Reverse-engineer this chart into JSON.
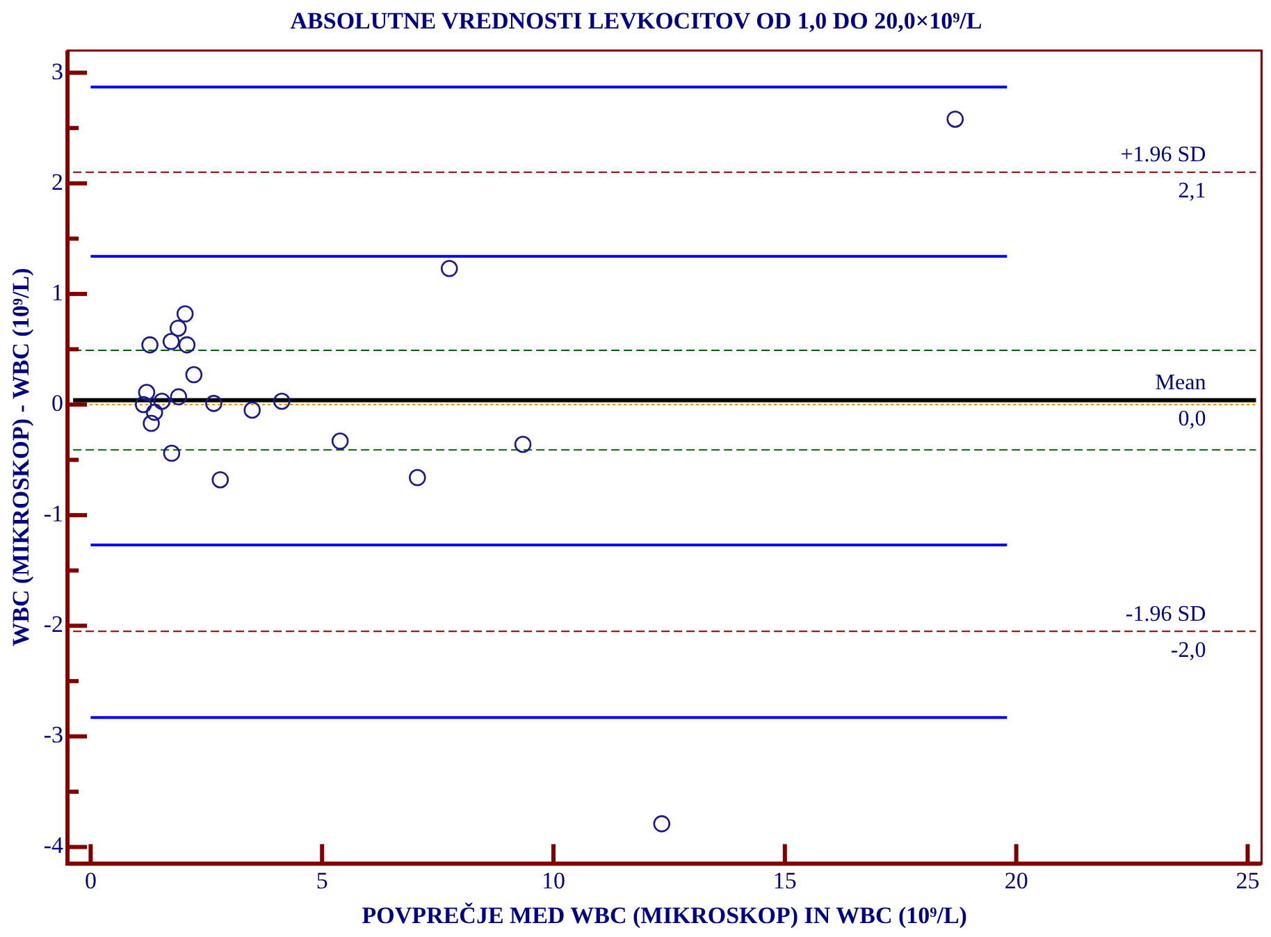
{
  "chart_data": {
    "type": "scatter",
    "title": "ABSOLUTNE VREDNOSTI LEVKOCITOV OD 1,0 DO 20,0×10⁹/L",
    "xlabel": "POVPREČJE MED WBC (MIKROSKOP) IN WBC (10⁹/L)",
    "ylabel": "WBC (MIKROSKOP) - WBC (10⁹/L)",
    "xlim": [
      -0.5,
      25.3
    ],
    "xticks": [
      0,
      5,
      10,
      15,
      20,
      25
    ],
    "ylim": [
      -4.15,
      3.2
    ],
    "yticks": [
      {
        "value": -4,
        "label": "-4"
      },
      {
        "value": -3.5,
        "label": null
      },
      {
        "value": -3,
        "label": "-3"
      },
      {
        "value": -2.5,
        "label": null
      },
      {
        "value": -2,
        "label": "-2"
      },
      {
        "value": -1.5,
        "label": null
      },
      {
        "value": -1,
        "label": "-1"
      },
      {
        "value": -0.5,
        "label": null
      },
      0,
      {
        "value": 0.5,
        "label": null
      },
      1,
      {
        "value": 1.5,
        "label": null
      },
      2,
      {
        "value": 2.5,
        "label": null
      },
      3
    ],
    "grid": false,
    "legend": false,
    "series": [
      {
        "marker": "circle",
        "color": "#1a1a8c",
        "x": [
          1.28,
          2.04,
          1.89,
          1.74,
          2.08,
          2.23,
          1.21,
          1.14,
          1.54,
          1.38,
          1.31,
          1.9,
          2.66,
          3.49,
          4.13,
          1.75,
          2.8,
          5.39,
          7.06,
          7.75,
          9.34,
          18.68,
          12.34
        ],
        "values": [
          0.54,
          0.82,
          0.69,
          0.57,
          0.54,
          0.27,
          0.11,
          0.0,
          0.03,
          -0.07,
          -0.17,
          0.07,
          0.01,
          -0.05,
          0.03,
          -0.44,
          -0.68,
          -0.33,
          -0.66,
          1.23,
          -0.36,
          2.58,
          -3.79
        ]
      },
      {
        "type": "line",
        "marker": "none",
        "line_style": "solid",
        "color": "#0000ff",
        "x": [
          0,
          19.8
        ],
        "values": [
          2.87,
          2.87
        ]
      },
      {
        "type": "line",
        "marker": "none",
        "line_style": "solid",
        "color": "#0000ff",
        "x": [
          0,
          19.8
        ],
        "values": [
          1.34,
          1.34
        ]
      },
      {
        "type": "line",
        "marker": "none",
        "line_style": "solid",
        "color": "#0000ff",
        "x": [
          0,
          19.8
        ],
        "values": [
          -1.27,
          -1.27
        ]
      },
      {
        "type": "line",
        "marker": "none",
        "line_style": "solid",
        "color": "#0000ff",
        "x": [
          0,
          19.8
        ],
        "values": [
          -2.83,
          -2.83
        ]
      }
    ],
    "ref_lines": [
      {
        "axis": "y",
        "value": 2.1,
        "label": "+1.96 SD",
        "color": "#8b0000",
        "line_style": "dashed"
      },
      {
        "axis": "y",
        "value": -2.05,
        "label": "-1.96 SD",
        "color": "#8b0000",
        "line_style": "dashed"
      },
      {
        "axis": "y",
        "value": 0.49,
        "color": "#006400",
        "line_style": "dashed"
      },
      {
        "axis": "y",
        "value": -0.41,
        "color": "#006400",
        "line_style": "dashed"
      },
      {
        "axis": "y",
        "value": 0,
        "color": "#ff8c00",
        "line_style": "dotted"
      },
      {
        "axis": "y",
        "value": 0.04,
        "label": "Mean",
        "color": "#000000",
        "line_style": "solid"
      }
    ],
    "annotations": [
      {
        "text": "2,1",
        "y": 2.1
      },
      {
        "text": "0,0",
        "y": 0.04
      },
      {
        "text": "-2,0",
        "y": -2.05
      }
    ]
  }
}
